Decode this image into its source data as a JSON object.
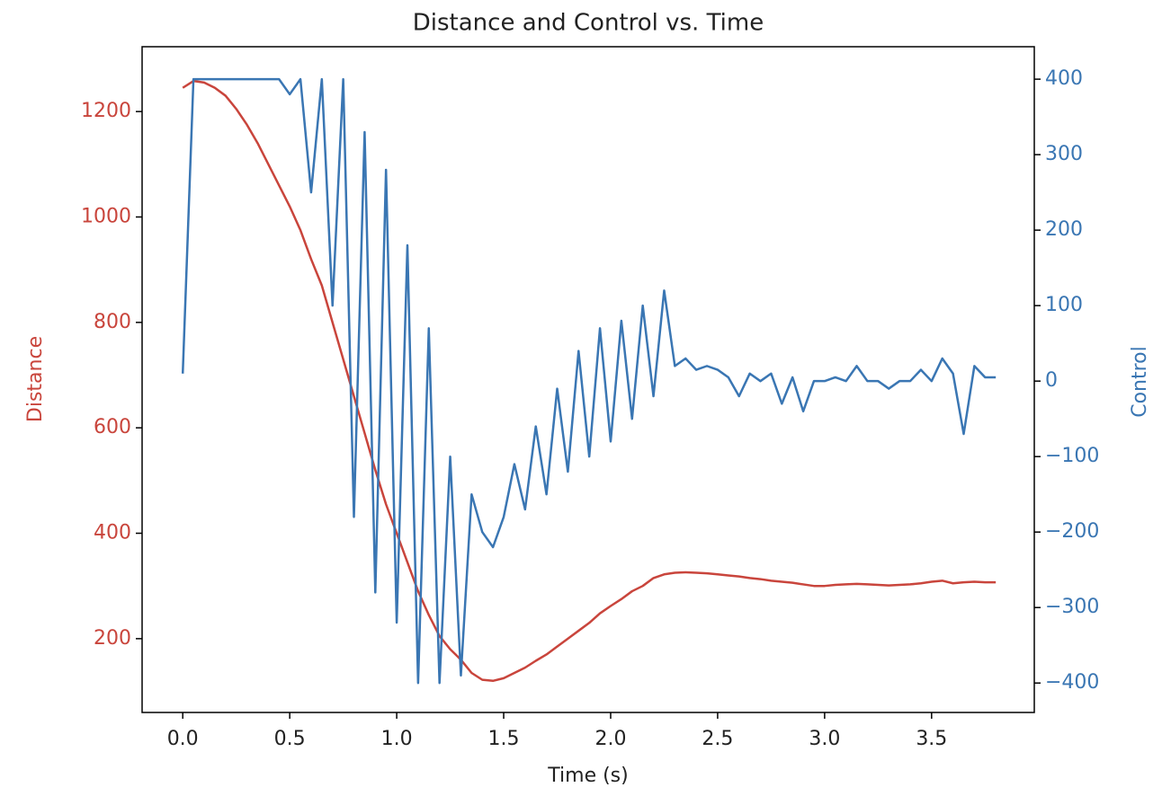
{
  "chart_data": {
    "type": "line",
    "title": "Distance and Control vs. Time",
    "xlabel": "Time (s)",
    "ylabel": "Distance",
    "y2label": "Control",
    "x": [
      0,
      0.05,
      0.1,
      0.15,
      0.2,
      0.25,
      0.3,
      0.35,
      0.4,
      0.45,
      0.5,
      0.55,
      0.6,
      0.65,
      0.7,
      0.75,
      0.8,
      0.85,
      0.9,
      0.95,
      1.0,
      1.05,
      1.1,
      1.15,
      1.2,
      1.25,
      1.3,
      1.35,
      1.4,
      1.45,
      1.5,
      1.55,
      1.6,
      1.65,
      1.7,
      1.75,
      1.8,
      1.85,
      1.9,
      1.95,
      2.0,
      2.05,
      2.1,
      2.15,
      2.2,
      2.25,
      2.3,
      2.35,
      2.4,
      2.45,
      2.5,
      2.55,
      2.6,
      2.65,
      2.7,
      2.75,
      2.8,
      2.85,
      2.9,
      2.95,
      3.0,
      3.05,
      3.1,
      3.15,
      3.2,
      3.25,
      3.3,
      3.35,
      3.4,
      3.45,
      3.5,
      3.55,
      3.6,
      3.65,
      3.7,
      3.75,
      3.8
    ],
    "series": [
      {
        "name": "Distance",
        "color": "#c9453c",
        "axis": "y",
        "values": [
          1245,
          1258,
          1255,
          1245,
          1230,
          1205,
          1175,
          1140,
          1100,
          1060,
          1020,
          975,
          920,
          870,
          800,
          730,
          660,
          590,
          520,
          455,
          400,
          345,
          290,
          245,
          205,
          180,
          160,
          135,
          122,
          120,
          125,
          135,
          145,
          158,
          170,
          185,
          200,
          215,
          230,
          248,
          262,
          275,
          290,
          300,
          315,
          322,
          325,
          326,
          325,
          324,
          322,
          320,
          318,
          315,
          313,
          310,
          308,
          306,
          303,
          300,
          300,
          302,
          303,
          304,
          303,
          302,
          301,
          302,
          303,
          305,
          308,
          310,
          305,
          307,
          308,
          307,
          307
        ]
      },
      {
        "name": "Control",
        "color": "#3a76b3",
        "axis": "y2",
        "values": [
          10,
          400,
          400,
          400,
          400,
          400,
          400,
          400,
          400,
          400,
          380,
          400,
          250,
          400,
          100,
          400,
          -180,
          330,
          -280,
          280,
          -320,
          180,
          -400,
          70,
          -400,
          -100,
          -390,
          -150,
          -200,
          -220,
          -180,
          -110,
          -170,
          -60,
          -150,
          -10,
          -120,
          40,
          -100,
          70,
          -80,
          80,
          -50,
          100,
          -20,
          120,
          20,
          30,
          15,
          20,
          15,
          5,
          -20,
          10,
          0,
          10,
          -30,
          5,
          -40,
          0,
          0,
          5,
          0,
          20,
          0,
          0,
          -10,
          0,
          0,
          15,
          0,
          30,
          10,
          -70,
          20,
          5,
          5
        ]
      }
    ],
    "xlim": [
      -0.19,
      3.98
    ],
    "xticks": [
      {
        "value": 0,
        "label": "0.0"
      },
      0.5,
      {
        "value": 1,
        "label": "1.0"
      },
      1.5,
      {
        "value": 2,
        "label": "2.0"
      },
      2.5,
      {
        "value": 3,
        "label": "3.0"
      },
      3.5
    ],
    "ylim": [
      60,
      1323
    ],
    "yticks": [
      200,
      400,
      600,
      800,
      1000,
      1200
    ],
    "y2lim": [
      -439,
      443
    ],
    "y2ticks": [
      {
        "value": -400,
        "label": "−400"
      },
      {
        "value": -300,
        "label": "−300"
      },
      {
        "value": -200,
        "label": "−200"
      },
      {
        "value": -100,
        "label": "−100"
      },
      0,
      100,
      200,
      300,
      400
    ]
  }
}
